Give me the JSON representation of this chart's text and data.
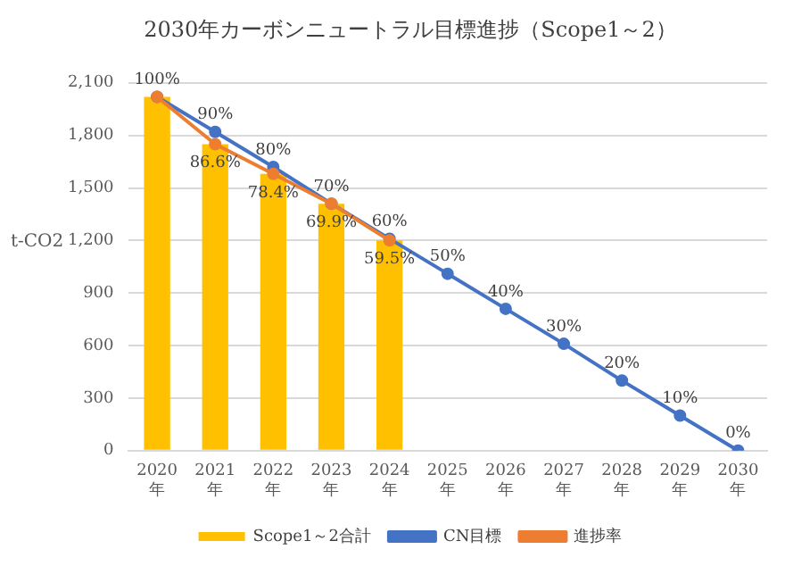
{
  "chart_data": {
    "type": "bar",
    "title": "2030年カーボンニュートラル目標進捗（Scope1～2）",
    "ylabel": "t-CO2",
    "categories": [
      "2020年",
      "2021年",
      "2022年",
      "2023年",
      "2024年",
      "2025年",
      "2026年",
      "2027年",
      "2028年",
      "2029年",
      "2030年"
    ],
    "series": [
      {
        "name": "Scope1～2合計",
        "color": "#ffc000",
        "values": [
          2020,
          1750,
          1580,
          1410,
          1200,
          null,
          null,
          null,
          null,
          null,
          null
        ]
      },
      {
        "name": "CN目標",
        "type": "line",
        "color": "#4472c4",
        "values": [
          2020,
          1820,
          1620,
          1410,
          1210,
          1010,
          810,
          610,
          400,
          200,
          0
        ]
      },
      {
        "name": "進捗率",
        "type": "line",
        "color": "#ed7d31",
        "values": [
          2020,
          1750,
          1580,
          1410,
          1200,
          null,
          null,
          null,
          null,
          null,
          null
        ]
      }
    ],
    "annotations": [
      {
        "text": "100%",
        "x": "2020年",
        "y": 2020
      },
      {
        "text": "90%",
        "x": "2021年",
        "y": 1820
      },
      {
        "text": "80%",
        "x": "2022年",
        "y": 1620
      },
      {
        "text": "70%",
        "x": "2023年",
        "y": 1410
      },
      {
        "text": "60%",
        "x": "2024年",
        "y": 1210
      },
      {
        "text": "50%",
        "x": "2025年",
        "y": 1010
      },
      {
        "text": "40%",
        "x": "2026年",
        "y": 810
      },
      {
        "text": "30%",
        "x": "2027年",
        "y": 610
      },
      {
        "text": "20%",
        "x": "2028年",
        "y": 400
      },
      {
        "text": "10%",
        "x": "2029年",
        "y": 200
      },
      {
        "text": "0%",
        "x": "2030年",
        "y": 0
      },
      {
        "text": "86.6%",
        "x": "2021年",
        "y": 1750
      },
      {
        "text": "78.4%",
        "x": "2022年",
        "y": 1580
      },
      {
        "text": "69.9%",
        "x": "2023年",
        "y": 1410
      },
      {
        "text": "59.5%",
        "x": "2024年",
        "y": 1200
      }
    ],
    "ylim": [
      0,
      2100
    ],
    "yticks": [
      0,
      300,
      600,
      900,
      {
        "value": 1200,
        "label": "1,200"
      },
      {
        "value": 1500,
        "label": "1,500"
      },
      {
        "value": 1800,
        "label": "1,800"
      },
      {
        "value": 2100,
        "label": "2,100"
      }
    ],
    "grid": "y",
    "legend": "bottom",
    "marker": "circle"
  }
}
